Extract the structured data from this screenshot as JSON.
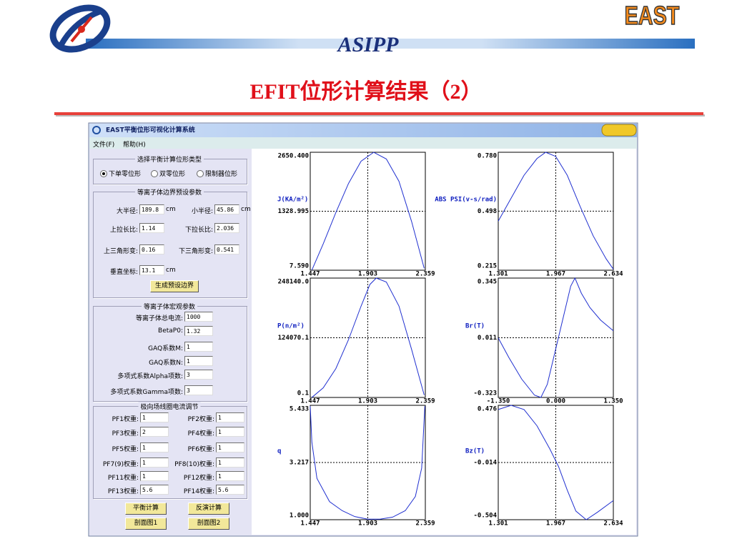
{
  "header": {
    "title": "ASIPP",
    "subtitle": "EFIT位形计算结果（2）",
    "logo": "EAST"
  },
  "window": {
    "title": "EAST平衡位形可视化计算系统",
    "menu": [
      "文件(F)",
      "帮助(H)"
    ]
  },
  "panel": {
    "shape_group": {
      "legend": "选择平衡计算位形类型",
      "options": [
        "下单零位形",
        "双零位形",
        "限制器位形"
      ]
    },
    "boundary": {
      "legend": "等离子体边界预设参数",
      "fields": [
        {
          "label": "大半径:",
          "value": "189.8",
          "unit": "cm"
        },
        {
          "label": "小半径:",
          "value": "45.86",
          "unit": "cm"
        },
        {
          "label": "上拉长比:",
          "value": "1.14"
        },
        {
          "label": "下拉长比:",
          "value": "2.036"
        },
        {
          "label": "上三角形变:",
          "value": "0.16"
        },
        {
          "label": "下三角形变:",
          "value": "0.541"
        },
        {
          "label": "垂直坐标:",
          "value": "13.1",
          "unit": "cm"
        }
      ],
      "button": "生成预设边界"
    },
    "macro": {
      "legend": "等离子体宏观参数",
      "fields": [
        {
          "label": "等离子体总电流:",
          "value": "1000"
        },
        {
          "label": "BetaP0:",
          "value": "1.32"
        },
        {
          "label": "GAQ系数M:",
          "value": "1"
        },
        {
          "label": "GAQ系数N:",
          "value": "1"
        },
        {
          "label": "多项式系数Alpha项数:",
          "value": "3"
        },
        {
          "label": "多项式系数Gamma项数:",
          "value": "3"
        }
      ]
    },
    "coils": {
      "legend": "极向场线圈电流调节",
      "fields": [
        {
          "label": "PF1权重:",
          "value": "1"
        },
        {
          "label": "PF2权重:",
          "value": "1"
        },
        {
          "label": "PF3权重:",
          "value": "2"
        },
        {
          "label": "PF4权重:",
          "value": "1"
        },
        {
          "label": "PF5权重:",
          "value": "1"
        },
        {
          "label": "PF6权重:",
          "value": "1"
        },
        {
          "label": "PF7(9)权重:",
          "value": "1"
        },
        {
          "label": "PF8(10)权重:",
          "value": "1"
        },
        {
          "label": "PF11权重:",
          "value": "1"
        },
        {
          "label": "PF12权重:",
          "value": "1"
        },
        {
          "label": "PF13权重:",
          "value": "5.6"
        },
        {
          "label": "PF14权重:",
          "value": "5.6"
        }
      ]
    },
    "buttons": [
      "平衡计算",
      "反演计算",
      "剖面图1",
      "剖面图2"
    ]
  },
  "plots": [
    {
      "type": "line",
      "ylabel": "J(KA/m²)",
      "color": "#2030d0",
      "xlim": [
        1.447,
        2.359
      ],
      "ylim": [
        7.59,
        2650.4
      ],
      "xticks": [
        1.447,
        1.903,
        2.359
      ],
      "yticks": [
        {
          "value": 7.59,
          "label": "7.590"
        },
        1328.995,
        {
          "value": 2650.4,
          "label": "2650.400"
        }
      ],
      "x": [
        1.46,
        1.55,
        1.65,
        1.75,
        1.85,
        1.95,
        2.05,
        2.15,
        2.25,
        2.35
      ],
      "y": [
        10,
        600,
        1300,
        1950,
        2450,
        2650,
        2500,
        2000,
        1100,
        50
      ]
    },
    {
      "type": "line",
      "ylabel": "ABS PSI(v-s/rad)",
      "color": "#2030d0",
      "xlim": [
        1.301,
        2.634
      ],
      "ylim": [
        0.215,
        0.78
      ],
      "xticks": [
        1.301,
        1.967,
        2.634
      ],
      "yticks": [
        0.215,
        0.498,
        {
          "value": 0.78,
          "label": "0.780"
        }
      ],
      "x": [
        1.301,
        1.45,
        1.6,
        1.75,
        1.85,
        1.967,
        2.1,
        2.25,
        2.4,
        2.55,
        2.634
      ],
      "y": [
        0.45,
        0.56,
        0.67,
        0.75,
        0.78,
        0.76,
        0.67,
        0.52,
        0.38,
        0.27,
        0.22
      ]
    },
    {
      "type": "line",
      "ylabel": "P(n/m²)",
      "color": "#2030d0",
      "xlim": [
        1.447,
        2.359
      ],
      "ylim": [
        0.1,
        248140
      ],
      "xticks": [
        1.447,
        1.903,
        2.359
      ],
      "yticks": [
        0.1,
        124070.1,
        {
          "value": 248140,
          "label": "248140.0"
        }
      ],
      "x": [
        1.46,
        1.55,
        1.65,
        1.75,
        1.85,
        1.92,
        1.97,
        2.05,
        2.15,
        2.25,
        2.35
      ],
      "y": [
        100,
        20000,
        60000,
        120000,
        190000,
        235000,
        248140,
        240000,
        190000,
        100000,
        5000
      ]
    },
    {
      "type": "line",
      "ylabel": "Br(T)",
      "color": "#2030d0",
      "xlim": [
        -1.35,
        1.35
      ],
      "ylim": [
        -0.323,
        0.345
      ],
      "xticks": [
        {
          "value": -1.35,
          "label": "-1.350"
        },
        {
          "value": 0,
          "label": "0.000"
        },
        {
          "value": 1.35,
          "label": "1.350"
        }
      ],
      "yticks": [
        -0.323,
        0.011,
        0.345
      ],
      "x": [
        -1.35,
        -1.1,
        -0.8,
        -0.5,
        -0.35,
        -0.2,
        0,
        0.2,
        0.35,
        0.45,
        0.6,
        0.8,
        1.05,
        1.35
      ],
      "y": [
        0.01,
        -0.1,
        -0.22,
        -0.31,
        -0.323,
        -0.25,
        -0.05,
        0.15,
        0.3,
        0.345,
        0.26,
        0.18,
        0.11,
        0.05
      ]
    },
    {
      "type": "line",
      "ylabel": "q",
      "color": "#2030d0",
      "xlim": [
        1.447,
        2.359
      ],
      "ylim": [
        1,
        5.433
      ],
      "xticks": [
        1.447,
        1.903,
        2.359
      ],
      "yticks": [
        {
          "value": 1,
          "label": "1.000"
        },
        3.217,
        5.433
      ],
      "x": [
        1.447,
        1.46,
        1.5,
        1.6,
        1.7,
        1.8,
        1.903,
        2.0,
        2.1,
        2.2,
        2.28,
        2.33,
        2.355
      ],
      "y": [
        5.4,
        4.0,
        2.6,
        1.7,
        1.35,
        1.12,
        1.02,
        1.02,
        1.1,
        1.35,
        1.9,
        3.0,
        5.4
      ]
    },
    {
      "type": "line",
      "ylabel": "Bz(T)",
      "color": "#2030d0",
      "xlim": [
        1.301,
        2.634
      ],
      "ylim": [
        -0.504,
        0.476
      ],
      "xticks": [
        1.301,
        1.967,
        2.634
      ],
      "yticks": [
        -0.504,
        -0.014,
        0.476
      ],
      "x": [
        1.301,
        1.45,
        1.6,
        1.75,
        1.9,
        2.0,
        2.1,
        2.2,
        2.32,
        2.45,
        2.634
      ],
      "y": [
        0.44,
        0.476,
        0.44,
        0.3,
        0.1,
        -0.05,
        -0.25,
        -0.43,
        -0.504,
        -0.44,
        -0.34
      ]
    }
  ]
}
